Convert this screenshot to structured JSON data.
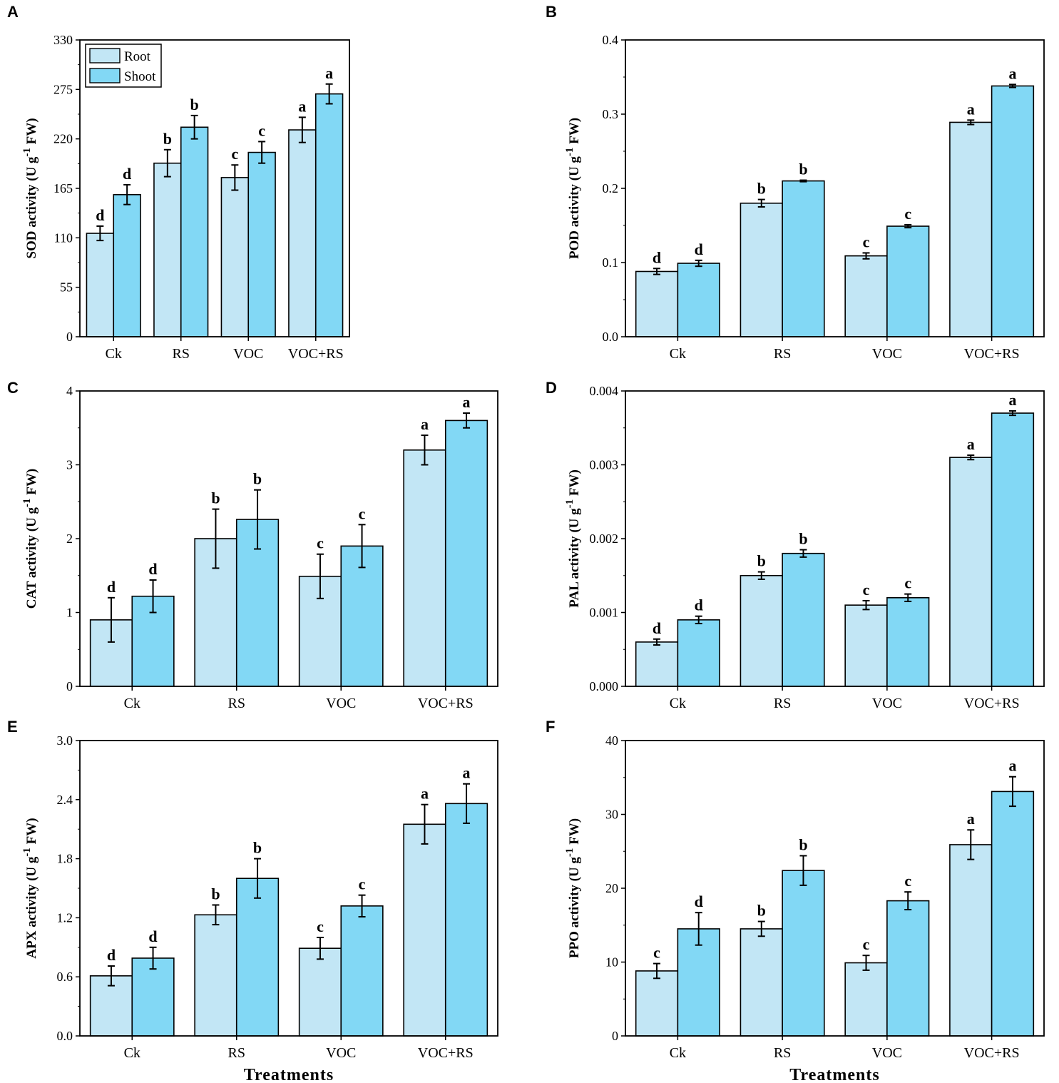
{
  "colors": {
    "root": "#c2e6f5",
    "shoot": "#82d8f5",
    "stroke": "#000000"
  },
  "legend": {
    "root_label": "Root",
    "shoot_label": "Shoot"
  },
  "xtitle": "Treatments",
  "chart_data": [
    {
      "panel": "A",
      "type": "bar",
      "ylabel": "SOD activity (U g-1 FW)",
      "ylabel_parts": {
        "before": "SOD activity (U g",
        "sup": "-1",
        "after": " FW)"
      },
      "categories": [
        "Ck",
        "RS",
        "VOC",
        "VOC+RS"
      ],
      "ylim": [
        0,
        330
      ],
      "yticks": [
        0,
        55,
        110,
        165,
        220,
        275,
        330
      ],
      "ytick_labels": [
        "0",
        "55",
        "110",
        "165",
        "220",
        "275",
        "330"
      ],
      "legend": true,
      "legend_position": "top-left",
      "series": [
        {
          "name": "Root",
          "values": [
            115,
            193,
            177,
            230
          ],
          "errors": [
            8,
            15,
            14,
            14
          ],
          "letters": [
            "d",
            "b",
            "c",
            "a"
          ]
        },
        {
          "name": "Shoot",
          "values": [
            158,
            233,
            205,
            270
          ],
          "errors": [
            11,
            13,
            12,
            11
          ],
          "letters": [
            "d",
            "b",
            "c",
            "a"
          ]
        }
      ]
    },
    {
      "panel": "B",
      "type": "bar",
      "ylabel": "POD activity (U g-1 FW)",
      "ylabel_parts": {
        "before": "POD activity (U g",
        "sup": "-1",
        "after": " FW)"
      },
      "categories": [
        "Ck",
        "RS",
        "VOC",
        "VOC+RS"
      ],
      "ylim": [
        0,
        0.4
      ],
      "yticks": [
        0,
        0.1,
        0.2,
        0.3,
        0.4
      ],
      "ytick_labels": [
        "0.0",
        "0.1",
        "0.2",
        "0.3",
        "0.4"
      ],
      "legend": false,
      "series": [
        {
          "name": "Root",
          "values": [
            0.088,
            0.18,
            0.109,
            0.289
          ],
          "errors": [
            0.004,
            0.005,
            0.004,
            0.003
          ],
          "letters": [
            "d",
            "b",
            "c",
            "a"
          ]
        },
        {
          "name": "Shoot",
          "values": [
            0.099,
            0.21,
            0.149,
            0.338
          ],
          "errors": [
            0.004,
            0.001,
            0.002,
            0.002
          ],
          "letters": [
            "d",
            "b",
            "c",
            "a"
          ]
        }
      ]
    },
    {
      "panel": "C",
      "type": "bar",
      "ylabel": "CAT activity (U g-1 FW)",
      "ylabel_parts": {
        "before": "CAT activity (U g",
        "sup": "-1",
        "after": " FW)"
      },
      "categories": [
        "Ck",
        "RS",
        "VOC",
        "VOC+RS"
      ],
      "ylim": [
        0,
        4
      ],
      "yticks": [
        0,
        1,
        2,
        3,
        4
      ],
      "ytick_labels": [
        "0",
        "1",
        "2",
        "3",
        "4"
      ],
      "legend": false,
      "series": [
        {
          "name": "Root",
          "values": [
            0.9,
            2.0,
            1.49,
            3.2
          ],
          "errors": [
            0.3,
            0.4,
            0.3,
            0.2
          ],
          "letters": [
            "d",
            "b",
            "c",
            "a"
          ]
        },
        {
          "name": "Shoot",
          "values": [
            1.22,
            2.26,
            1.9,
            3.6
          ],
          "errors": [
            0.22,
            0.4,
            0.29,
            0.1
          ],
          "letters": [
            "d",
            "b",
            "c",
            "a"
          ]
        }
      ]
    },
    {
      "panel": "D",
      "type": "bar",
      "ylabel": "PAL activity (U g-1 FW)",
      "ylabel_parts": {
        "before": "PAL activity (U g",
        "sup": "-1",
        "after": " FW)"
      },
      "categories": [
        "Ck",
        "RS",
        "VOC",
        "VOC+RS"
      ],
      "ylim": [
        0,
        0.004
      ],
      "yticks": [
        0,
        0.001,
        0.002,
        0.003,
        0.004
      ],
      "ytick_labels": [
        "0.000",
        "0.001",
        "0.002",
        "0.003",
        "0.004"
      ],
      "legend": false,
      "series": [
        {
          "name": "Root",
          "values": [
            0.0006,
            0.0015,
            0.0011,
            0.0031
          ],
          "errors": [
            4e-05,
            5e-05,
            6e-05,
            3e-05
          ],
          "letters": [
            "d",
            "b",
            "c",
            "a"
          ]
        },
        {
          "name": "Shoot",
          "values": [
            0.0009,
            0.0018,
            0.0012,
            0.0037
          ],
          "errors": [
            5e-05,
            5e-05,
            5e-05,
            3e-05
          ],
          "letters": [
            "d",
            "b",
            "c",
            "a"
          ]
        }
      ]
    },
    {
      "panel": "E",
      "type": "bar",
      "ylabel": "APX activity (U g-1 FW)",
      "ylabel_parts": {
        "before": "APX activity (U g",
        "sup": "-1",
        "after": " FW)"
      },
      "categories": [
        "Ck",
        "RS",
        "VOC",
        "VOC+RS"
      ],
      "ylim": [
        0,
        3.0
      ],
      "yticks": [
        0,
        0.6,
        1.2,
        1.8,
        2.4,
        3.0
      ],
      "ytick_labels": [
        "0.0",
        "0.6",
        "1.2",
        "1.8",
        "2.4",
        "3.0"
      ],
      "legend": false,
      "series": [
        {
          "name": "Root",
          "values": [
            0.61,
            1.23,
            0.89,
            2.15
          ],
          "errors": [
            0.1,
            0.1,
            0.11,
            0.2
          ],
          "letters": [
            "d",
            "b",
            "c",
            "a"
          ]
        },
        {
          "name": "Shoot",
          "values": [
            0.79,
            1.6,
            1.32,
            2.36
          ],
          "errors": [
            0.11,
            0.2,
            0.11,
            0.2
          ],
          "letters": [
            "d",
            "b",
            "c",
            "a"
          ]
        }
      ]
    },
    {
      "panel": "F",
      "type": "bar",
      "ylabel": "PPO activity (U g-1 FW)",
      "ylabel_parts": {
        "before": "PPO activity (U g",
        "sup": "-1",
        "after": " FW)"
      },
      "categories": [
        "Ck",
        "RS",
        "VOC",
        "VOC+RS"
      ],
      "ylim": [
        0,
        40
      ],
      "yticks": [
        0,
        10,
        20,
        30,
        40
      ],
      "ytick_labels": [
        "0",
        "10",
        "20",
        "30",
        "40"
      ],
      "legend": false,
      "series": [
        {
          "name": "Root",
          "values": [
            8.8,
            14.5,
            9.9,
            25.9
          ],
          "errors": [
            1,
            1,
            1,
            2
          ],
          "letters": [
            "c",
            "b",
            "c",
            "a"
          ]
        },
        {
          "name": "Shoot",
          "values": [
            14.5,
            22.4,
            18.3,
            33.1
          ],
          "errors": [
            2.2,
            2,
            1.2,
            2
          ],
          "letters": [
            "d",
            "b",
            "c",
            "a"
          ]
        }
      ]
    }
  ]
}
